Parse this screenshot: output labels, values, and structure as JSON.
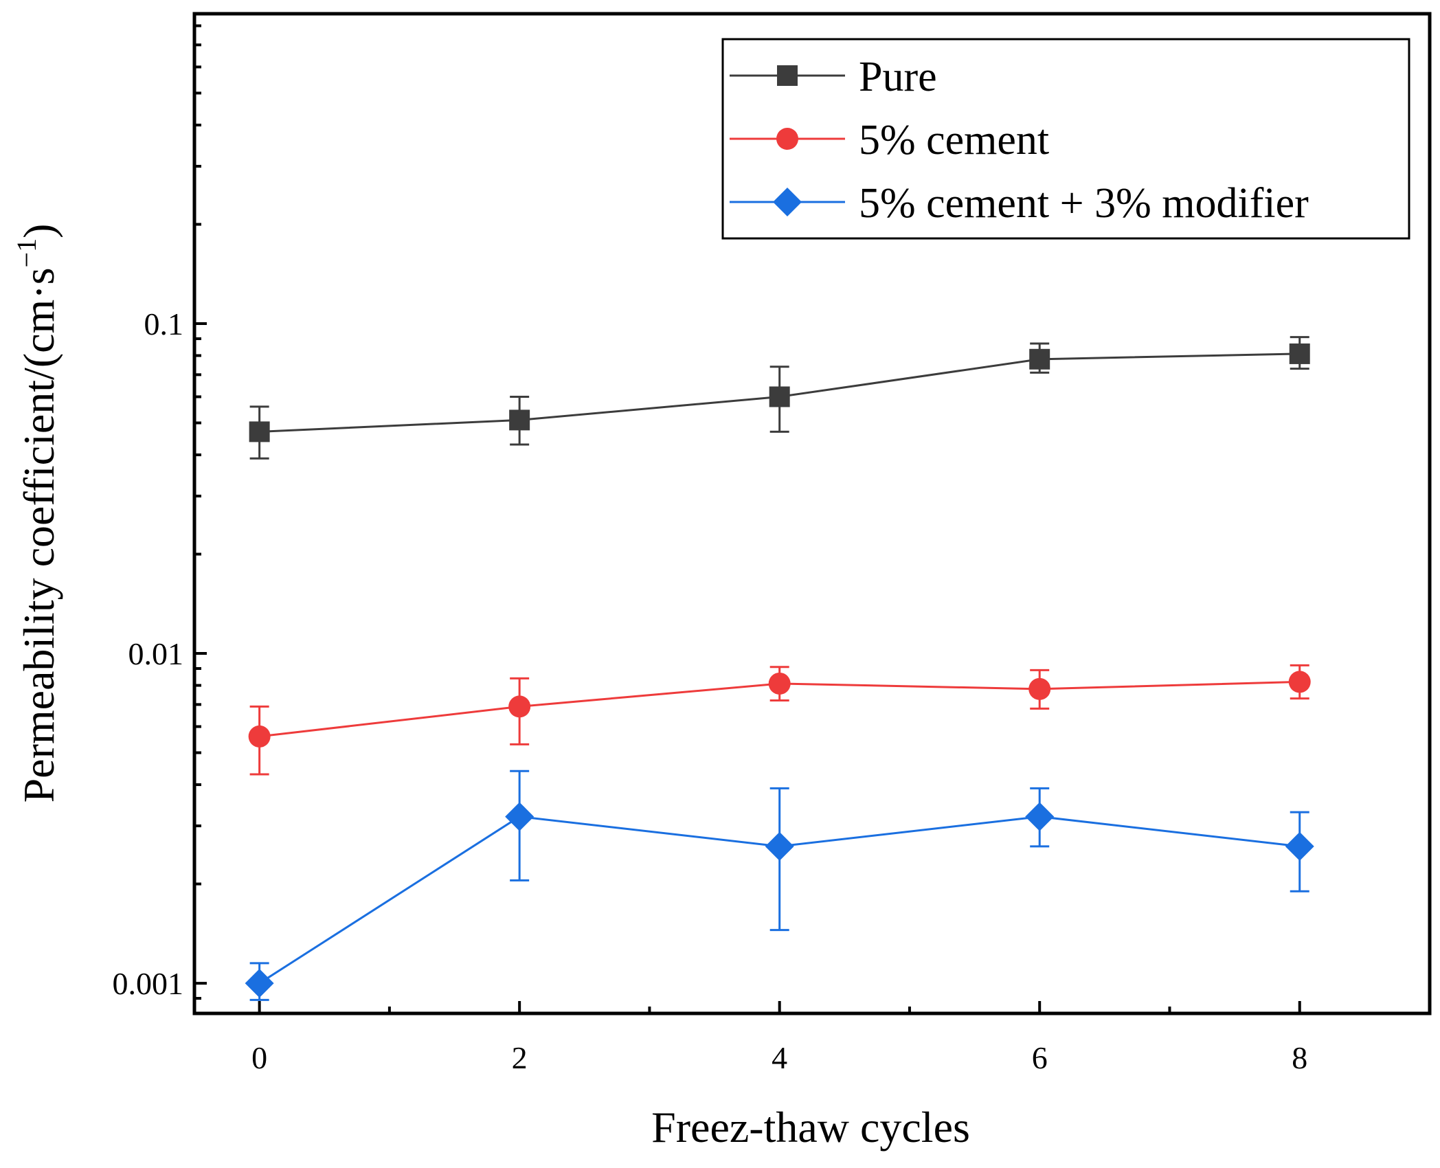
{
  "chart_data": {
    "type": "line",
    "title": "",
    "xlabel": "Freez-thaw cycles",
    "ylabel": "Permeability coefficient/(cm·s",
    "ylabel_exponent": "−1",
    "ylabel_close": ")",
    "yscale": "log",
    "xlim": [
      -0.5,
      9
    ],
    "ylim": [
      0.00081,
      0.87
    ],
    "x_ticks": [
      0,
      2,
      4,
      6,
      8
    ],
    "x_tick_labels": [
      "0",
      "2",
      "4",
      "6",
      "8"
    ],
    "y_ticks": [
      0.001,
      0.01,
      0.1
    ],
    "y_tick_labels": [
      "0.001",
      "0.01",
      "0.1"
    ],
    "legend_position": "top-right",
    "x": [
      0,
      2,
      4,
      6,
      8
    ],
    "series": [
      {
        "name": "Pure",
        "color": "#3c3c3c",
        "marker": "square",
        "values": [
          0.047,
          0.051,
          0.06,
          0.078,
          0.081
        ],
        "err_low": [
          0.039,
          0.043,
          0.047,
          0.071,
          0.073
        ],
        "err_high": [
          0.056,
          0.06,
          0.074,
          0.087,
          0.091
        ]
      },
      {
        "name": "5% cement",
        "color": "#ee3b3b",
        "marker": "circle",
        "values": [
          0.0056,
          0.0069,
          0.0081,
          0.0078,
          0.0082
        ],
        "err_low": [
          0.0043,
          0.0053,
          0.0072,
          0.0068,
          0.0073
        ],
        "err_high": [
          0.0069,
          0.0084,
          0.0091,
          0.0089,
          0.0092
        ]
      },
      {
        "name": "5% cement + 3% modifier",
        "color": "#1a6fe0",
        "marker": "diamond",
        "values": [
          0.001,
          0.0032,
          0.0026,
          0.0032,
          0.0026
        ],
        "err_low": [
          0.00089,
          0.00205,
          0.00145,
          0.0026,
          0.0019
        ],
        "err_high": [
          0.00115,
          0.0044,
          0.0039,
          0.0039,
          0.0033
        ]
      }
    ]
  }
}
